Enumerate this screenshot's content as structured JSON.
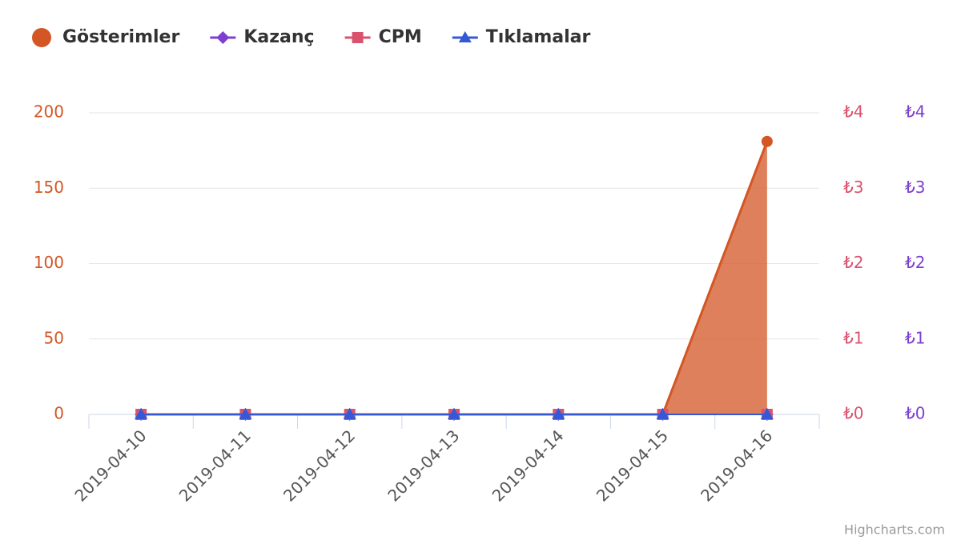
{
  "chart_data": {
    "type": "area-line",
    "categories": [
      "2019-04-10",
      "2019-04-11",
      "2019-04-12",
      "2019-04-13",
      "2019-04-14",
      "2019-04-15",
      "2019-04-16"
    ],
    "series": [
      {
        "name": "Gösterimler",
        "color": "#d35624",
        "marker": "circle",
        "kind": "area",
        "axis": "y",
        "values": [
          0,
          0,
          0,
          0,
          0,
          0,
          181
        ]
      },
      {
        "name": "Kazanç",
        "color": "#7d3fd0",
        "marker": "diamond",
        "kind": "line",
        "axis": "y3",
        "values": [
          0,
          0,
          0,
          0,
          0,
          0,
          0
        ]
      },
      {
        "name": "CPM",
        "color": "#d9536e",
        "marker": "square",
        "kind": "line",
        "axis": "y2",
        "values": [
          0,
          0,
          0,
          0,
          0,
          0,
          0
        ]
      },
      {
        "name": "Tıklamalar",
        "color": "#3558d6",
        "marker": "triangle",
        "kind": "line",
        "axis": "y",
        "values": [
          0,
          0,
          0,
          0,
          0,
          0,
          0
        ]
      }
    ],
    "ylim": [
      0,
      200
    ],
    "yticks": [
      0,
      50,
      100,
      150,
      200
    ],
    "y2lim": [
      0,
      4
    ],
    "y2ticks": [
      {
        "value": 0,
        "label": "₺0"
      },
      {
        "value": 1,
        "label": "₺1"
      },
      {
        "value": 2,
        "label": "₺2"
      },
      {
        "value": 3,
        "label": "₺3"
      },
      {
        "value": 4,
        "label": "₺4"
      }
    ],
    "y3lim": [
      0,
      4
    ],
    "y3ticks": [
      {
        "value": 0,
        "label": "₺0"
      },
      {
        "value": 1,
        "label": "₺1"
      },
      {
        "value": 2,
        "label": "₺2"
      },
      {
        "value": 3,
        "label": "₺3"
      },
      {
        "value": 4,
        "label": "₺4"
      }
    ],
    "grid": true,
    "legend": "top-left",
    "credits": "Highcharts.com"
  }
}
